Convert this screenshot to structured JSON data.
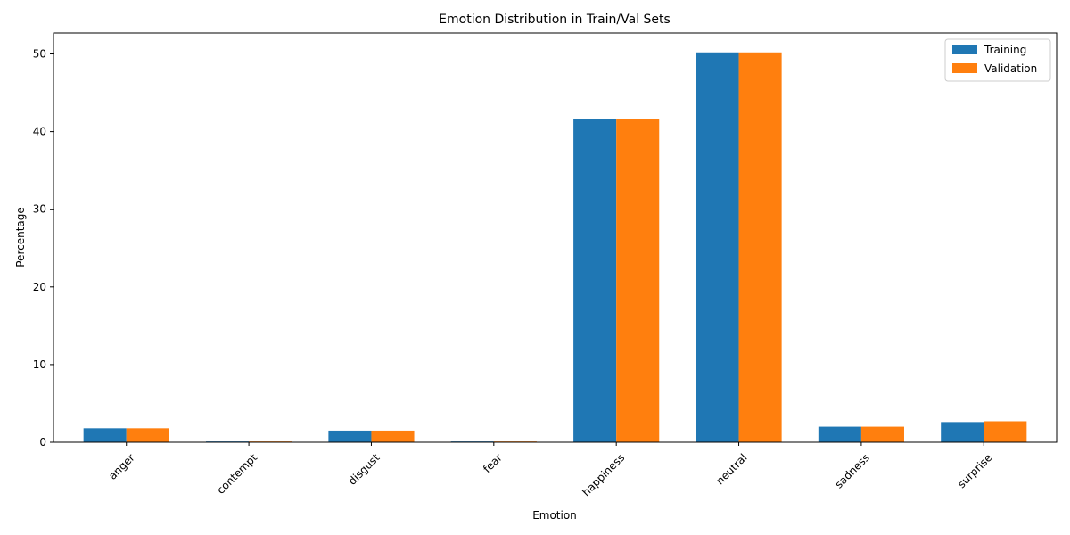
{
  "chart_data": {
    "type": "bar",
    "title": "Emotion Distribution in Train/Val Sets",
    "xlabel": "Emotion",
    "ylabel": "Percentage",
    "categories": [
      "anger",
      "contempt",
      "disgust",
      "fear",
      "happiness",
      "neutral",
      "sadness",
      "surprise"
    ],
    "series": [
      {
        "name": "Training",
        "color": "#1f77b4",
        "values": [
          1.8,
          0.1,
          1.5,
          0.1,
          41.6,
          50.2,
          2.0,
          2.6
        ]
      },
      {
        "name": "Validation",
        "color": "#ff7f0e",
        "values": [
          1.8,
          0.1,
          1.5,
          0.1,
          41.6,
          50.2,
          2.0,
          2.7
        ]
      }
    ],
    "ylim": [
      0,
      52.7
    ],
    "yticks": [
      0,
      10,
      20,
      30,
      40,
      50
    ],
    "legend_position": "top-right",
    "grid": false,
    "xtick_rotation": 45
  }
}
